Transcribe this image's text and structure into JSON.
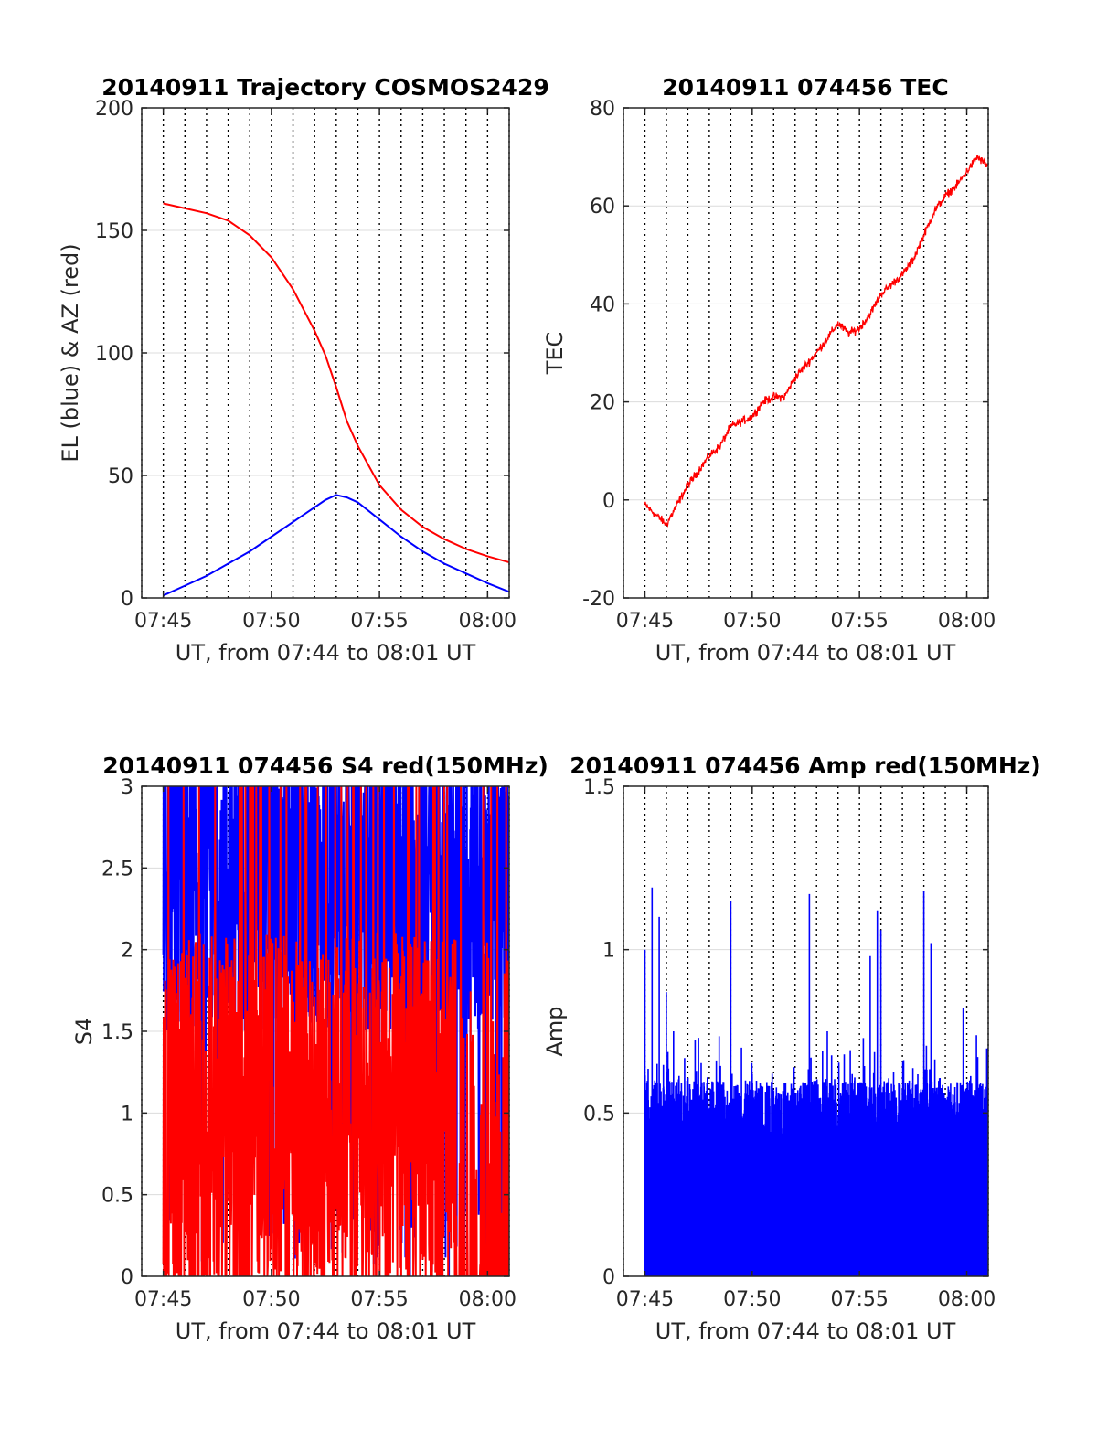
{
  "colors": {
    "red": "#ff0000",
    "blue": "#0000ff",
    "axis": "#262626",
    "grid": "#dcdcdc"
  },
  "chart_data": [
    {
      "type": "line",
      "title": "20140911 Trajectory COSMOS2429",
      "xlabel": "UT, from 07:44 to 08:01 UT",
      "ylabel": "EL (blue) & AZ (red)",
      "xlim": [
        "07:44",
        "08:01"
      ],
      "ylim": [
        0,
        200
      ],
      "xticks": [
        "07:45",
        "07:50",
        "07:55",
        "08:00"
      ],
      "yticks": [
        "0",
        "50",
        "100",
        "150",
        "200"
      ],
      "grid": true,
      "series": [
        {
          "color": "#ff0000",
          "x": [
            "07:45",
            "07:46",
            "07:47",
            "07:48",
            "07:49",
            "07:50",
            "07:51",
            "07:52",
            "07:52:30",
            "07:53",
            "07:53:30",
            "07:54",
            "07:55",
            "07:56",
            "07:57",
            "07:58",
            "07:59",
            "08:00",
            "08:01"
          ],
          "y": [
            161,
            159,
            157,
            154,
            148,
            139,
            126,
            109,
            99,
            86,
            72,
            62,
            46,
            36,
            29,
            24,
            20,
            17,
            14.5
          ]
        },
        {
          "color": "#0000ff",
          "x": [
            "07:45",
            "07:46",
            "07:47",
            "07:48",
            "07:49",
            "07:50",
            "07:51",
            "07:52",
            "07:52:30",
            "07:53",
            "07:53:30",
            "07:54",
            "07:55",
            "07:56",
            "07:57",
            "07:58",
            "07:59",
            "08:00",
            "08:01"
          ],
          "y": [
            1,
            5,
            9,
            14,
            19,
            25,
            31,
            37,
            40,
            42,
            41,
            39,
            32,
            25,
            19,
            14,
            10,
            6,
            2.5
          ]
        }
      ]
    },
    {
      "type": "line",
      "title": "20140911 074456 TEC",
      "xlabel": "UT, from 07:44 to 08:01 UT",
      "ylabel": "TEC",
      "xlim": [
        "07:44",
        "08:01"
      ],
      "ylim": [
        -20,
        80
      ],
      "xticks": [
        "07:45",
        "07:50",
        "07:55",
        "08:00"
      ],
      "yticks": [
        "-20",
        "0",
        "20",
        "40",
        "60",
        "80"
      ],
      "grid": true,
      "series": [
        {
          "color": "#ff0000",
          "x": [
            "07:45",
            "07:45:30",
            "07:46",
            "07:46:30",
            "07:47",
            "07:48",
            "07:48:30",
            "07:49",
            "07:50",
            "07:50:30",
            "07:51",
            "07:51:30",
            "07:52",
            "07:53",
            "07:54",
            "07:54:30",
            "07:55",
            "07:55:30",
            "07:56",
            "07:57",
            "07:57:30",
            "07:58",
            "07:58:30",
            "07:59",
            "07:59:30",
            "08:00",
            "08:00:30",
            "08:01"
          ],
          "y": [
            -1,
            -3,
            -5,
            -1,
            3,
            9,
            11,
            15,
            17,
            20,
            21,
            21,
            25,
            30,
            36,
            34,
            35,
            38,
            42,
            46,
            49,
            54,
            59,
            62,
            64,
            67,
            70,
            68
          ]
        }
      ]
    },
    {
      "type": "bar",
      "title": "20140911 074456 S4 red(150MHz)",
      "xlabel": "UT, from 07:44 to 08:01 UT",
      "ylabel": "S4",
      "xlim": [
        "07:44",
        "08:01"
      ],
      "ylim": [
        0,
        3
      ],
      "xticks": [
        "07:45",
        "07:50",
        "07:55",
        "08:00"
      ],
      "yticks": [
        "0",
        "0.5",
        "1",
        "1.5",
        "2",
        "2.5",
        "3"
      ],
      "grid": true,
      "series": [
        {
          "color": "#0000ff",
          "description": "dense fluctuating signal, mostly 1.4 to 3 with drops to 0",
          "range": [
            0,
            3
          ]
        },
        {
          "color": "#ff0000",
          "description": "dense fluctuating signal, mostly 0 to 2 with spikes to 3",
          "range": [
            0,
            3
          ]
        }
      ]
    },
    {
      "type": "bar",
      "title": "20140911 074456 Amp red(150MHz)",
      "xlabel": "UT, from 07:44 to 08:01 UT",
      "ylabel": "Amp",
      "xlim": [
        "07:44",
        "08:01"
      ],
      "ylim": [
        0,
        1.5
      ],
      "xticks": [
        "07:45",
        "07:50",
        "07:55",
        "08:00"
      ],
      "yticks": [
        "0",
        "0.5",
        "1",
        "1.5"
      ],
      "grid": true,
      "series": [
        {
          "color": "#0000ff",
          "peaks_x": [
            "07:45",
            "07:45:20",
            "07:45:40",
            "07:46",
            "07:46:20",
            "07:47:30",
            "07:49",
            "07:49:30",
            "07:50",
            "07:52:40",
            "07:53:30",
            "07:55:30",
            "07:55:50",
            "07:56",
            "07:58",
            "07:58:20",
            "07:59:50",
            "08:00:30",
            "08:01"
          ],
          "peaks_y": [
            1.0,
            1.19,
            1.1,
            0.87,
            0.75,
            0.73,
            1.15,
            0.7,
            0.62,
            1.17,
            0.75,
            0.98,
            1.12,
            1.06,
            1.18,
            1.02,
            0.82,
            0.66,
            0.7
          ]
        }
      ]
    }
  ]
}
